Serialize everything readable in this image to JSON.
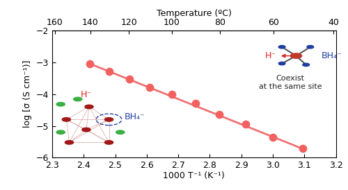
{
  "chart_data": {
    "type": "scatter",
    "xlabel": "1000 T⁻¹ (K⁻¹)",
    "ylabel": "log [σ (S cm⁻¹)]",
    "x2label": "Temperature (ºC)",
    "series": [
      {
        "type": "scatter",
        "color": "#f26060",
        "marker": "o",
        "x": [
          2.42,
          2.48,
          2.545,
          2.61,
          2.68,
          2.755,
          2.83,
          2.915,
          3.0,
          3.095
        ],
        "values": [
          -3.05,
          -3.28,
          -3.52,
          -3.78,
          -4.0,
          -4.3,
          -4.65,
          -4.95,
          -5.35,
          -5.7
        ]
      },
      {
        "type": "line",
        "color": "#f07272",
        "line_style": "solid",
        "x": [
          2.42,
          3.095
        ],
        "values": [
          -3.05,
          -5.72
        ]
      }
    ],
    "xlim": [
      2.3,
      3.2
    ],
    "xticks": [
      2.3,
      2.4,
      2.5,
      2.6,
      2.7,
      2.8,
      2.9,
      3.0,
      3.1,
      3.2
    ],
    "ylim": [
      -6,
      -2
    ],
    "yticks": [
      {
        "value": -6,
        "label": "−6"
      },
      {
        "value": -5,
        "label": "−5"
      },
      {
        "value": -4,
        "label": "−4"
      },
      {
        "value": -3,
        "label": "−3"
      },
      {
        "value": -2,
        "label": "−2"
      }
    ],
    "x2ticks": [
      160,
      140,
      120,
      100,
      80,
      60,
      40
    ],
    "annotations": [
      "H⁻",
      "BH₄⁻",
      "Coexist\nat the same site",
      "H⁻",
      "BH₄⁻"
    ]
  }
}
